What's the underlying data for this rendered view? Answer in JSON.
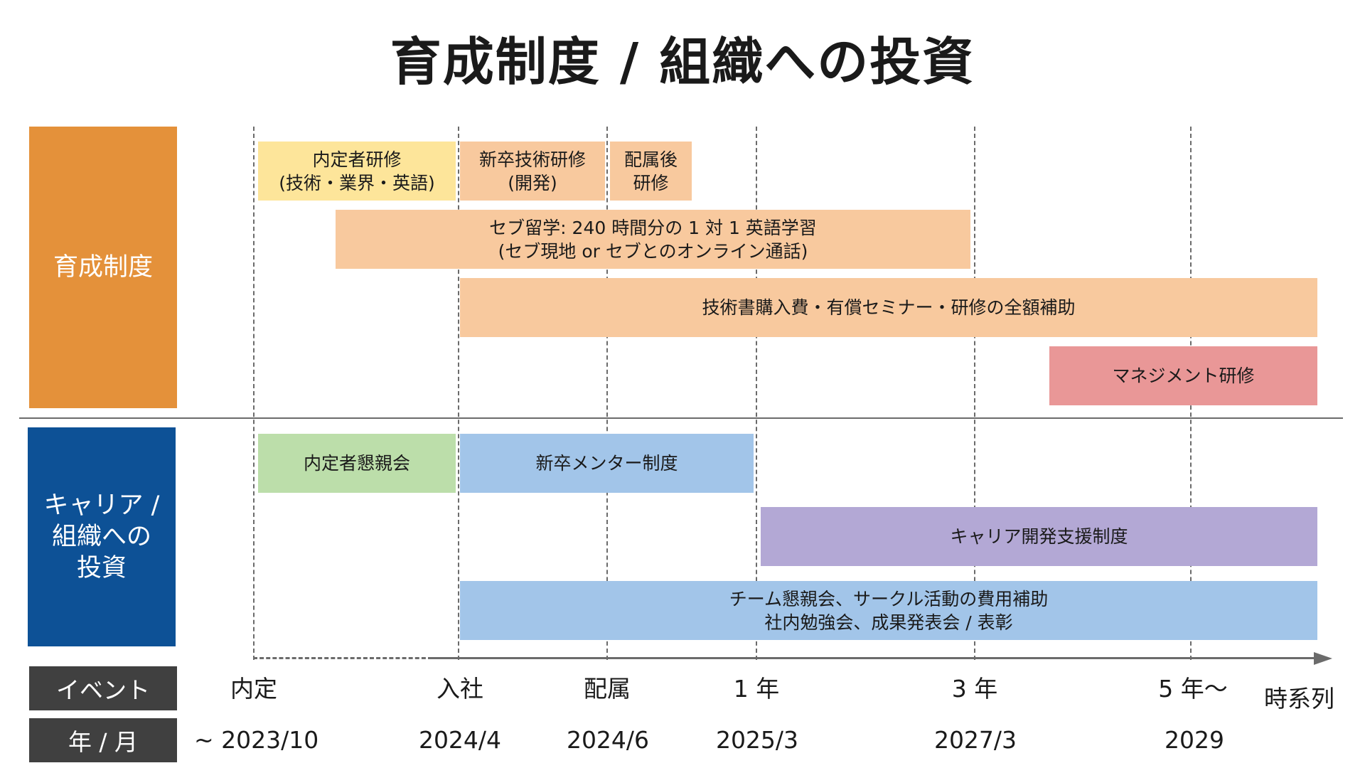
{
  "title": "育成制度 / 組織への投資",
  "categories": {
    "development": "育成制度",
    "career_lines": [
      "キャリア /",
      "組織への",
      "投資"
    ]
  },
  "row_labels": {
    "event": "イベント",
    "date": "年 / 月"
  },
  "timeline": {
    "events": [
      "内定",
      "入社",
      "配属",
      "1 年",
      "3 年",
      "5 年～"
    ],
    "dates": [
      "~ 2023/10",
      "2024/4",
      "2024/6",
      "2025/3",
      "2027/3",
      "2029"
    ],
    "axis_label": "時系列"
  },
  "programs": {
    "naiteisha_kenshu": [
      "内定者研修",
      "(技術・業界・英語)"
    ],
    "shinsotsu_gijutsu": [
      "新卒技術研修",
      "(開発)"
    ],
    "haizokugo": [
      "配属後",
      "研修"
    ],
    "cebu": [
      "セブ留学: 240 時間分の 1 対 1 英語学習",
      "(セブ現地 or セブとのオンライン通話)"
    ],
    "hojo": [
      "技術書購入費・有償セミナー・研修の全額補助"
    ],
    "management": [
      "マネジメント研修"
    ],
    "konshinkai": [
      "内定者懇親会"
    ],
    "mentor": [
      "新卒メンター制度"
    ],
    "career_shien": [
      "キャリア開発支援制度"
    ],
    "team": [
      "チーム懇親会、サークル活動の費用補助",
      "社内勉強会、成果発表会 / 表彰"
    ]
  },
  "colors": {
    "development_block": "#e4913a",
    "career_block": "#0d5196",
    "yellow": "#fde59a",
    "peach": "#f8c99e",
    "pink": "#e99797",
    "green": "#bcdeaa",
    "blue": "#a2c5e9",
    "purple": "#b3a8d5",
    "label_bg": "#404040"
  }
}
